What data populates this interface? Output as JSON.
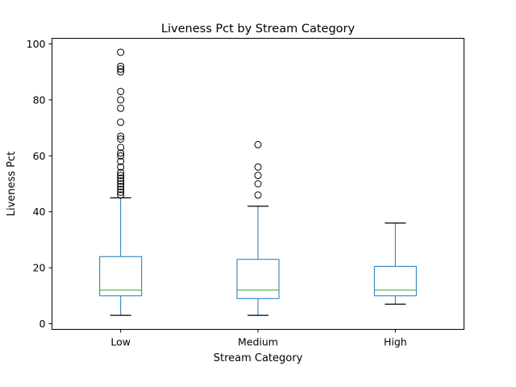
{
  "chart_data": {
    "type": "box",
    "title": "Liveness Pct by Stream Category",
    "xlabel": "Stream Category",
    "ylabel": "Liveness Pct",
    "ylim": [
      -2,
      102
    ],
    "yticks": [
      0,
      20,
      40,
      60,
      80,
      100
    ],
    "grid": false,
    "categories": [
      "Low",
      "Medium",
      "High"
    ],
    "boxes": [
      {
        "category": "Low",
        "whisker_low": 3,
        "q1": 10,
        "median": 12,
        "q3": 24,
        "whisker_high": 45,
        "outliers": [
          46,
          47,
          48,
          49,
          50,
          51,
          52,
          53,
          54,
          56,
          58,
          60,
          61,
          63,
          66,
          67,
          72,
          77,
          80,
          83,
          90,
          91,
          92,
          97
        ]
      },
      {
        "category": "Medium",
        "whisker_low": 3,
        "q1": 9,
        "median": 12,
        "q3": 23,
        "whisker_high": 42,
        "outliers": [
          46,
          50,
          53,
          56,
          64
        ]
      },
      {
        "category": "High",
        "whisker_low": 7,
        "q1": 10,
        "median": 12,
        "q3": 20.5,
        "whisker_high": 36,
        "outliers": []
      }
    ],
    "colors": {
      "box": "#1f77b4",
      "median": "#2ca02c",
      "whisker_cap": "#000000",
      "outlier": "#000000"
    }
  }
}
